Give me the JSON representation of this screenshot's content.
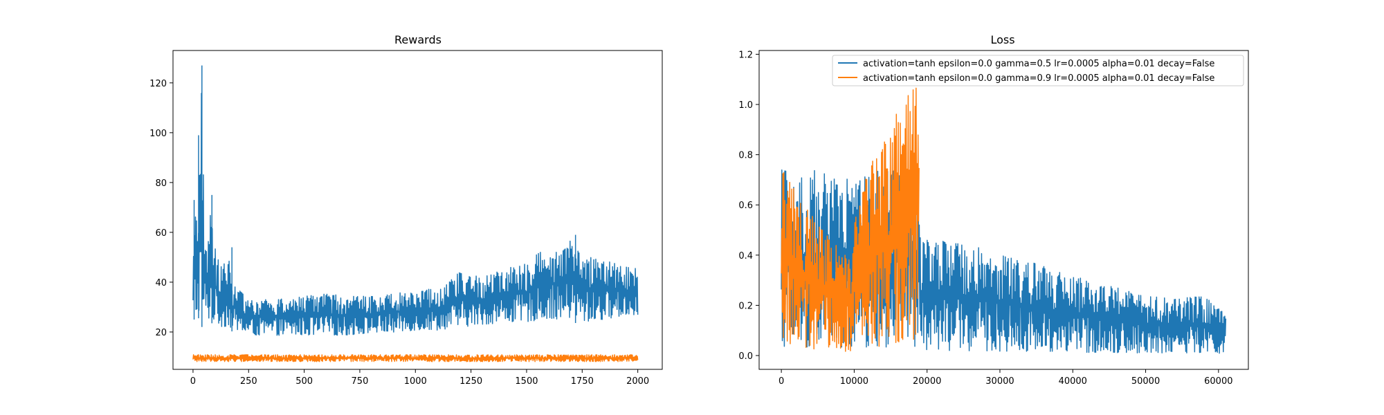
{
  "colors": {
    "series1": "#1f77b4",
    "series2": "#ff7f0e",
    "axes": "#000000",
    "background": "#ffffff"
  },
  "chart_data": [
    {
      "type": "line",
      "title": "Rewards",
      "xlabel": "",
      "ylabel": "",
      "xlim": [
        -90,
        2110
      ],
      "ylim": [
        5,
        133
      ],
      "xticks": [
        0,
        250,
        500,
        750,
        1000,
        1250,
        1500,
        1750,
        2000
      ],
      "yticks": [
        20,
        40,
        60,
        80,
        100,
        120
      ],
      "grid": false,
      "legend": "none",
      "series": [
        {
          "color": "#1f77b4",
          "x_range": [
            0,
            2000
          ],
          "envelope": {
            "x": [
              0,
              10,
              20,
              30,
              40,
              50,
              60,
              80,
              100,
              130,
              160,
              180,
              200,
              250,
              300,
              400,
              500,
              600,
              700,
              800,
              900,
              1000,
              1100,
              1200,
              1300,
              1400,
              1500,
              1600,
              1650,
              1700,
              1750,
              1800,
              1900,
              2000
            ],
            "low": [
              26,
              24,
              25,
              26,
              22,
              24,
              22,
              24,
              22,
              21,
              21,
              20,
              20,
              18,
              18,
              18,
              18,
              18,
              18,
              19,
              19,
              20,
              20,
              21,
              22,
              23,
              23,
              24,
              24,
              24,
              23,
              23,
              25,
              26
            ],
            "high": [
              47,
              73,
              64,
              99,
              127,
              66,
              55,
              75,
              55,
              47,
              54,
              40,
              38,
              34,
              34,
              34,
              35,
              36,
              35,
              35,
              37,
              37,
              39,
              45,
              43,
              46,
              49,
              56,
              53,
              59,
              52,
              51,
              49,
              46
            ]
          },
          "key_points": [
            {
              "x": 5,
              "y": 73
            },
            {
              "x": 25,
              "y": 99
            },
            {
              "x": 40,
              "y": 127
            },
            {
              "x": 85,
              "y": 75
            },
            {
              "x": 175,
              "y": 54
            },
            {
              "x": 1720,
              "y": 59
            }
          ]
        },
        {
          "color": "#ff7f0e",
          "x_range": [
            0,
            2000
          ],
          "envelope": {
            "x": [
              0,
              2000
            ],
            "low": [
              8,
              8
            ],
            "high": [
              11,
              11
            ]
          }
        }
      ]
    },
    {
      "type": "line",
      "title": "Loss",
      "xlabel": "",
      "ylabel": "",
      "xlim": [
        -3050,
        64100
      ],
      "ylim": [
        -0.055,
        1.215
      ],
      "xticks": [
        0,
        10000,
        20000,
        30000,
        40000,
        50000,
        60000
      ],
      "yticks": [
        0.0,
        0.2,
        0.4,
        0.6,
        0.8,
        1.0,
        1.2
      ],
      "grid": false,
      "legend": "top-right",
      "series": [
        {
          "name": "activation=tanh epsilon=0.0 gamma=0.5 lr=0.0005 alpha=0.01 decay=False",
          "color": "#1f77b4",
          "x_range": [
            0,
            61000
          ],
          "envelope": {
            "x": [
              0,
              18900,
              19000,
              25000,
              30000,
              35000,
              40000,
              45000,
              50000,
              55000,
              58000,
              61000
            ],
            "low": [
              0,
              0,
              0,
              0,
              0,
              0,
              0,
              0,
              0,
              0,
              0,
              0
            ],
            "high": [
              0.77,
              0.77,
              0.49,
              0.46,
              0.43,
              0.38,
              0.33,
              0.29,
              0.25,
              0.24,
              0.25,
              0.17
            ]
          }
        },
        {
          "name": "activation=tanh epsilon=0.0 gamma=0.9 lr=0.0005 alpha=0.01 decay=False",
          "color": "#ff7f0e",
          "x_range": [
            0,
            18900
          ],
          "envelope": {
            "x": [
              0,
              300,
              3000,
              6000,
              9500,
              10000,
              12000,
              14000,
              16000,
              17000,
              18000,
              18900
            ],
            "low": [
              0.09,
              0.02,
              0.0,
              0.0,
              0.0,
              0.0,
              0.0,
              0.0,
              0.0,
              0.0,
              0.0,
              0.0
            ],
            "high": [
              0.77,
              0.76,
              0.63,
              0.51,
              0.39,
              0.55,
              0.78,
              0.88,
              1.03,
              1.04,
              1.17,
              1.18
            ]
          }
        }
      ]
    }
  ]
}
